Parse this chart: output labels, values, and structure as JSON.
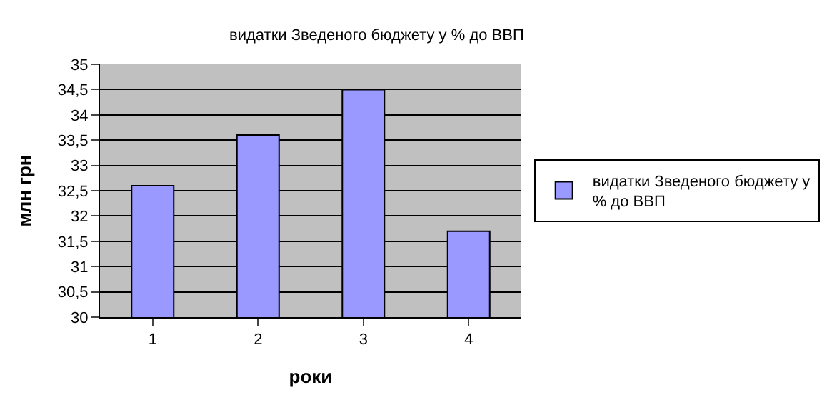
{
  "chart_data": {
    "type": "bar",
    "title": "видатки Зведеного бюджету у % до ВВП",
    "xlabel": "роки",
    "ylabel": "млн грн",
    "categories": [
      "1",
      "2",
      "3",
      "4"
    ],
    "series": [
      {
        "name": "видатки Зведеного бюджету у % до ВВП",
        "color": "#9999ff",
        "values": [
          32.6,
          33.6,
          34.5,
          31.7
        ]
      }
    ],
    "ylim": [
      30,
      35
    ],
    "yticks": [
      30,
      {
        "value": 30.5,
        "label": "30,5"
      },
      31,
      {
        "value": 31.5,
        "label": "31,5"
      },
      32,
      {
        "value": 32.5,
        "label": "32,5"
      },
      33,
      {
        "value": 33.5,
        "label": "33,5"
      },
      34,
      {
        "value": 34.5,
        "label": "34,5"
      },
      35
    ],
    "grid": "y",
    "legend": "right"
  }
}
